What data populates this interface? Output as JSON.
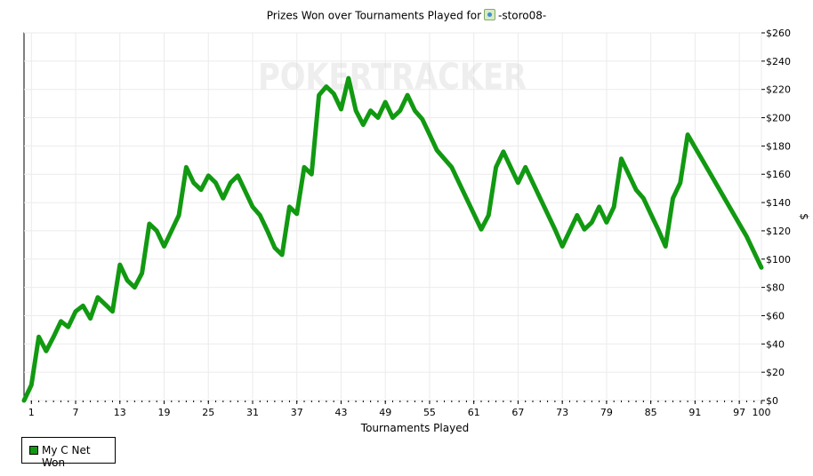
{
  "title": {
    "prefix": "Prizes Won over Tournaments Played for",
    "player": "-storo08-"
  },
  "watermark": "POKERTRACKER",
  "chart_data": {
    "type": "line",
    "title": "Prizes Won over Tournaments Played for -storo08-",
    "xlabel": "Tournaments Played",
    "ylabel": "$",
    "xlim": [
      0,
      100
    ],
    "ylim": [
      0,
      260
    ],
    "x_ticks": [
      1,
      7,
      13,
      19,
      25,
      31,
      37,
      43,
      49,
      55,
      61,
      67,
      73,
      79,
      85,
      91,
      97,
      100
    ],
    "y_ticks": [
      0,
      20,
      40,
      60,
      80,
      100,
      120,
      140,
      160,
      180,
      200,
      220,
      240,
      260
    ],
    "y_tick_labels": [
      "$0",
      "$20",
      "$40",
      "$60",
      "$80",
      "$100",
      "$120",
      "$140",
      "$160",
      "$180",
      "$200",
      "$220",
      "$240",
      "$260"
    ],
    "grid": true,
    "legend_position": "bottom-left",
    "series": [
      {
        "name": "My C Net Won",
        "color": "#119911",
        "x": [
          0,
          1,
          2,
          3,
          4,
          5,
          6,
          7,
          8,
          9,
          10,
          11,
          12,
          13,
          14,
          15,
          16,
          17,
          18,
          19,
          20,
          21,
          22,
          23,
          24,
          25,
          26,
          27,
          28,
          29,
          30,
          31,
          32,
          33,
          34,
          35,
          36,
          37,
          38,
          39,
          40,
          41,
          42,
          43,
          44,
          45,
          46,
          47,
          48,
          49,
          50,
          51,
          52,
          53,
          54,
          55,
          56,
          58,
          59,
          60,
          61,
          62,
          63,
          64,
          65,
          66,
          67,
          68,
          69,
          70,
          71,
          72,
          73,
          74,
          75,
          76,
          77,
          78,
          79,
          80,
          81,
          82,
          83,
          84,
          85,
          86,
          87,
          88,
          89,
          90,
          91,
          92,
          93,
          94,
          95,
          96,
          97,
          98,
          99,
          100
        ],
        "y": [
          0,
          11,
          45,
          35,
          45,
          56,
          52,
          63,
          67,
          58,
          73,
          68,
          63,
          96,
          85,
          80,
          90,
          125,
          120,
          109,
          120,
          131,
          165,
          154,
          149,
          159,
          154,
          143,
          154,
          159,
          148,
          137,
          131,
          120,
          108,
          103,
          137,
          132,
          165,
          160,
          216,
          222,
          217,
          206,
          228,
          205,
          195,
          205,
          200,
          211,
          200,
          205,
          216,
          205,
          199,
          188,
          177,
          165,
          154,
          143,
          132,
          121,
          131,
          165,
          176,
          165,
          154,
          165,
          154,
          143,
          132,
          121,
          109,
          120,
          131,
          121,
          126,
          137,
          126,
          137,
          171,
          160,
          149,
          143,
          132,
          121,
          109,
          143,
          154,
          188,
          179,
          170,
          161,
          152,
          143,
          134,
          125,
          116,
          105,
          94
        ]
      }
    ]
  }
}
